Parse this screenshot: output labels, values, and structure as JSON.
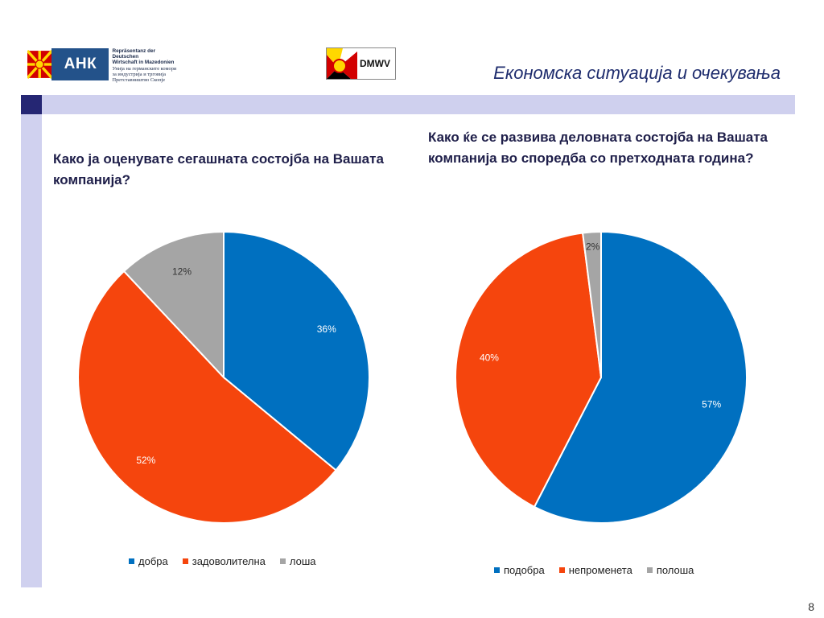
{
  "header": {
    "ahk_logo_text": "АНК",
    "ahk_line1": "Repräsentanz der Deutschen",
    "ahk_line2": "Wirtschaft in Mazedonien",
    "ahk_line3": "Унија на германските комори",
    "ahk_line4": "за индустрија и трговија",
    "ahk_line5": "Претставништво Скопје",
    "dmwv_logo_text": "DMWV",
    "title": "Економска ситуација и очекувања"
  },
  "colors": {
    "blue": "#0070c0",
    "orange": "#f5450d",
    "gray": "#a5a5a5",
    "accent_dark": "#252673",
    "accent_light": "#cfd0ee"
  },
  "chart_data": [
    {
      "type": "pie",
      "title": "Како ја оценувате сегашната состојба на Вашата компанија?",
      "categories": [
        "добра",
        "задоволителна",
        "лоша"
      ],
      "values": [
        36,
        52,
        12
      ],
      "labels": [
        "36%",
        "52%",
        "12%"
      ],
      "colors": [
        "#0070c0",
        "#f5450d",
        "#a5a5a5"
      ],
      "legend_position": "bottom"
    },
    {
      "type": "pie",
      "title": "Како ќе се развива деловната состојба на Вашата компанија во споредба со претходната година?",
      "categories": [
        "подобра",
        "непроменета",
        "полоша"
      ],
      "values": [
        57,
        40,
        2
      ],
      "labels": [
        "57%",
        "40%",
        "2%"
      ],
      "colors": [
        "#0070c0",
        "#f5450d",
        "#a5a5a5"
      ],
      "legend_position": "bottom"
    }
  ],
  "footer": {
    "page_number": "8"
  }
}
